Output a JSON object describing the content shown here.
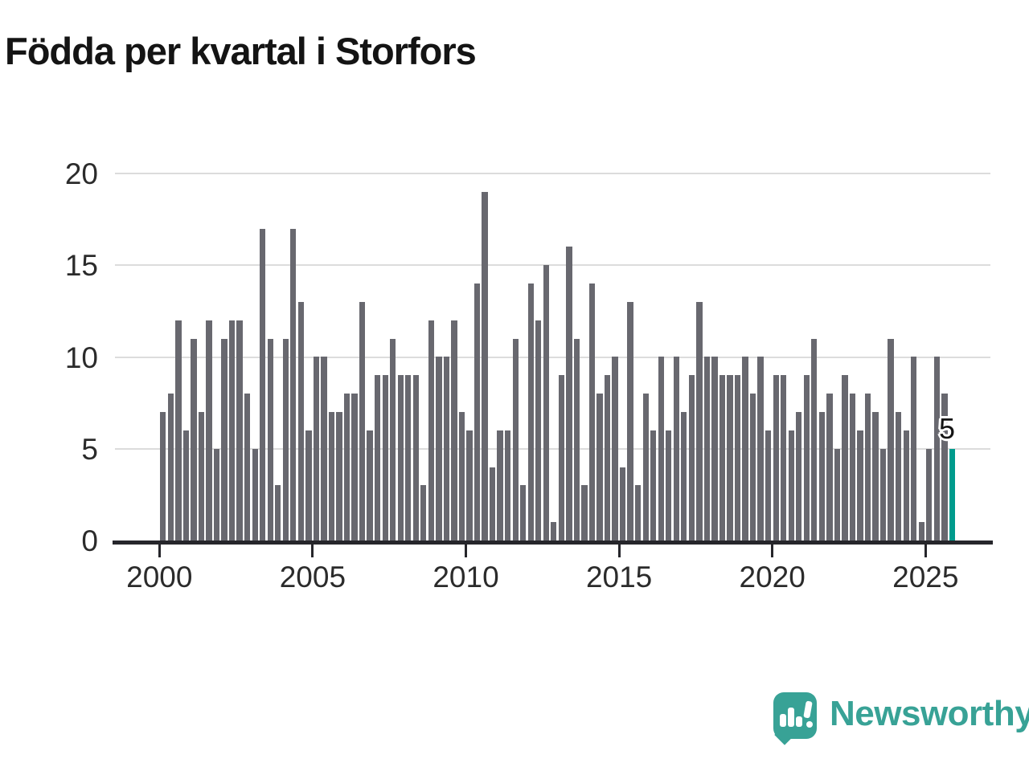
{
  "title": "Födda per kvartal i Storfors",
  "branding": {
    "logo_text": "Newsworthy",
    "logo_color": "#38a296",
    "logo_icon": "speech-bubble-bar-chart-icon"
  },
  "chart_data": {
    "type": "bar",
    "x_unit": "quarter",
    "start_quarter": "2000-Q1",
    "end_quarter": "2025-Q4",
    "values": [
      7,
      8,
      12,
      6,
      11,
      7,
      12,
      5,
      11,
      12,
      12,
      8,
      5,
      17,
      11,
      3,
      11,
      17,
      13,
      6,
      10,
      10,
      7,
      7,
      8,
      8,
      13,
      6,
      9,
      9,
      11,
      9,
      9,
      9,
      3,
      12,
      10,
      10,
      12,
      7,
      6,
      14,
      19,
      4,
      6,
      6,
      11,
      3,
      14,
      12,
      15,
      1,
      9,
      16,
      11,
      3,
      14,
      8,
      9,
      10,
      4,
      13,
      3,
      8,
      6,
      10,
      6,
      10,
      7,
      9,
      13,
      10,
      10,
      9,
      9,
      9,
      10,
      8,
      10,
      6,
      9,
      9,
      6,
      7,
      9,
      11,
      7,
      8,
      5,
      9,
      8,
      6,
      8,
      7,
      5,
      11,
      7,
      6,
      10,
      1,
      5,
      10,
      8,
      5
    ],
    "series_years": [
      2000,
      2001,
      2002,
      2003,
      2004,
      2005,
      2006,
      2007,
      2008,
      2009,
      2010,
      2011,
      2012,
      2013,
      2014,
      2015,
      2016,
      2017,
      2018,
      2019,
      2020,
      2021,
      2022,
      2023,
      2024,
      2025
    ],
    "highlight": {
      "index": 103,
      "quarter": "2025-Q4",
      "value": 5,
      "label": "5",
      "color": "#009b8d"
    },
    "bar_color": "#68686f",
    "yticks": [
      "0",
      "5",
      "10",
      "15",
      "20"
    ],
    "ytick_values": [
      0,
      5,
      10,
      15,
      20
    ],
    "xticks": [
      "2000",
      "2005",
      "2010",
      "2015",
      "2020",
      "2025"
    ],
    "xtick_values": [
      2000,
      2005,
      2010,
      2015,
      2020,
      2025
    ],
    "ylim": [
      0,
      20
    ],
    "grid": true,
    "legend": "none",
    "title": "Födda per kvartal i Storfors",
    "xlabel": "",
    "ylabel": ""
  }
}
